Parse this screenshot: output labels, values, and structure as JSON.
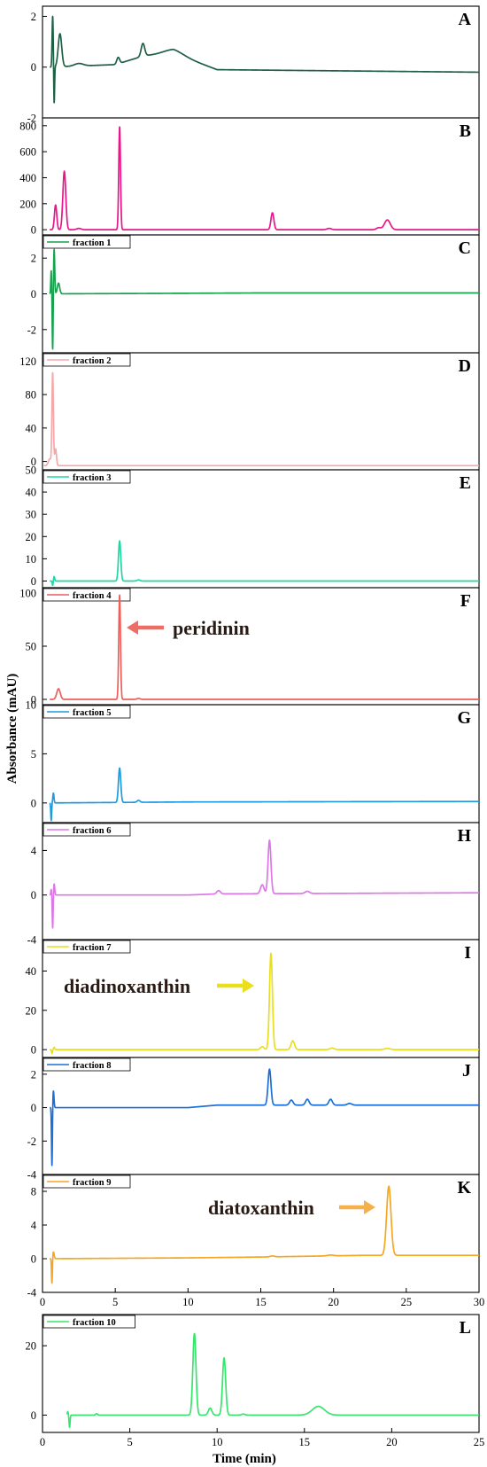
{
  "figure": {
    "ylabel": "Absorbance (mAU)",
    "xlabel": "Time (min)"
  },
  "chart_data": [
    {
      "type": "line",
      "panel": "A",
      "color": "#1f5f45",
      "legend": "",
      "xlim": [
        0,
        30
      ],
      "ylim": [
        -2,
        2.4
      ],
      "yticks": [
        -2,
        0,
        2
      ],
      "baseline": [
        [
          0.5,
          0
        ],
        [
          5,
          0.1
        ],
        [
          7,
          0.45
        ],
        [
          9,
          0.55
        ],
        [
          12,
          -0.1
        ],
        [
          30,
          -0.2
        ]
      ],
      "peaks": [
        {
          "t": 0.7,
          "h": 2.0,
          "w": 0.04
        },
        {
          "t": 0.8,
          "h": -1.5,
          "w": 0.03
        },
        {
          "t": 1.2,
          "h": 1.3,
          "w": 0.12
        },
        {
          "t": 2.5,
          "h": 0.1,
          "w": 0.3
        },
        {
          "t": 5.2,
          "h": 0.25,
          "w": 0.1
        },
        {
          "t": 6.9,
          "h": 0.5,
          "w": 0.12
        },
        {
          "t": 9.0,
          "h": 0.15,
          "w": 0.7
        }
      ]
    },
    {
      "type": "line",
      "panel": "B",
      "color": "#e8168a",
      "legend": "",
      "xlim": [
        0,
        30
      ],
      "ylim": [
        -40,
        860
      ],
      "yticks": [
        0,
        200,
        400,
        600,
        800
      ],
      "baseline": [
        [
          0.5,
          0
        ],
        [
          30,
          0
        ]
      ],
      "peaks": [
        {
          "t": 0.9,
          "h": 190,
          "w": 0.08
        },
        {
          "t": 1.5,
          "h": 450,
          "w": 0.1
        },
        {
          "t": 2.5,
          "h": 10,
          "w": 0.15
        },
        {
          "t": 5.3,
          "h": 790,
          "w": 0.06
        },
        {
          "t": 15.8,
          "h": 130,
          "w": 0.1
        },
        {
          "t": 19.7,
          "h": 10,
          "w": 0.15
        },
        {
          "t": 23.7,
          "h": 75,
          "w": 0.2
        },
        {
          "t": 23.1,
          "h": 15,
          "w": 0.15
        }
      ]
    },
    {
      "type": "line",
      "panel": "C",
      "color": "#17a24e",
      "legend": "fraction 1",
      "xlim": [
        0,
        30
      ],
      "ylim": [
        -3.3,
        3.3
      ],
      "yticks": [
        -2,
        0,
        2
      ],
      "baseline": [
        [
          0.5,
          0
        ],
        [
          15,
          0.05
        ],
        [
          30,
          0.05
        ]
      ],
      "peaks": [
        {
          "t": 0.6,
          "h": 1.3,
          "w": 0.03
        },
        {
          "t": 0.7,
          "h": -3.2,
          "w": 0.03
        },
        {
          "t": 0.8,
          "h": 2.5,
          "w": 0.04
        },
        {
          "t": 1.1,
          "h": 0.6,
          "w": 0.08
        }
      ]
    },
    {
      "type": "line",
      "panel": "D",
      "color": "#f4a9a8",
      "legend": "fraction 2",
      "xlim": [
        0,
        30
      ],
      "ylim": [
        -10,
        130
      ],
      "yticks": [
        0,
        40,
        80,
        120
      ],
      "baseline": [
        [
          0.1,
          -5
        ],
        [
          30,
          -5
        ]
      ],
      "peaks": [
        {
          "t": 0.5,
          "h": 8,
          "w": 0.1
        },
        {
          "t": 0.7,
          "h": 110,
          "w": 0.05
        },
        {
          "t": 0.9,
          "h": 20,
          "w": 0.06
        }
      ]
    },
    {
      "type": "line",
      "panel": "E",
      "color": "#1ed7a4",
      "legend": "fraction 3",
      "xlim": [
        0,
        30
      ],
      "ylim": [
        -3,
        50
      ],
      "yticks": [
        0,
        10,
        20,
        30,
        40,
        50
      ],
      "baseline": [
        [
          0.5,
          0
        ],
        [
          30,
          0
        ]
      ],
      "peaks": [
        {
          "t": 0.7,
          "h": -2,
          "w": 0.03
        },
        {
          "t": 0.8,
          "h": 2,
          "w": 0.04
        },
        {
          "t": 5.3,
          "h": 18,
          "w": 0.08
        },
        {
          "t": 6.6,
          "h": 0.5,
          "w": 0.1
        }
      ]
    },
    {
      "type": "line",
      "panel": "F",
      "color": "#ee5f5b",
      "legend": "fraction 4",
      "xlim": [
        0,
        30
      ],
      "ylim": [
        -5,
        105
      ],
      "yticks": [
        0,
        50,
        100
      ],
      "annotation": "peridinin",
      "baseline": [
        [
          0.5,
          0
        ],
        [
          30,
          0
        ]
      ],
      "peaks": [
        {
          "t": 1.1,
          "h": 10,
          "w": 0.12
        },
        {
          "t": 5.3,
          "h": 98,
          "w": 0.06
        },
        {
          "t": 6.6,
          "h": 1,
          "w": 0.1
        }
      ]
    },
    {
      "type": "line",
      "panel": "G",
      "color": "#1e9adf",
      "legend": "fraction 5",
      "xlim": [
        0,
        30
      ],
      "ylim": [
        -2,
        10
      ],
      "yticks": [
        0,
        5,
        10
      ],
      "baseline": [
        [
          0.5,
          0
        ],
        [
          10,
          0.1
        ],
        [
          30,
          0.15
        ]
      ],
      "peaks": [
        {
          "t": 0.6,
          "h": -1.8,
          "w": 0.03
        },
        {
          "t": 0.75,
          "h": 1,
          "w": 0.04
        },
        {
          "t": 5.3,
          "h": 3.5,
          "w": 0.08
        },
        {
          "t": 6.6,
          "h": 0.2,
          "w": 0.1
        }
      ]
    },
    {
      "type": "line",
      "panel": "H",
      "color": "#dd77e8",
      "legend": "fraction 6",
      "xlim": [
        0,
        30
      ],
      "ylim": [
        -4,
        6.5
      ],
      "yticks": [
        -4,
        0,
        4
      ],
      "baseline": [
        [
          0.5,
          0
        ],
        [
          10,
          0
        ],
        [
          12,
          0.1
        ],
        [
          30,
          0.2
        ]
      ],
      "peaks": [
        {
          "t": 0.6,
          "h": 0.5,
          "w": 0.03
        },
        {
          "t": 0.7,
          "h": -3.0,
          "w": 0.03
        },
        {
          "t": 0.8,
          "h": 1.0,
          "w": 0.04
        },
        {
          "t": 12.1,
          "h": 0.3,
          "w": 0.12
        },
        {
          "t": 15.1,
          "h": 0.8,
          "w": 0.12
        },
        {
          "t": 15.6,
          "h": 4.8,
          "w": 0.1
        },
        {
          "t": 18.2,
          "h": 0.2,
          "w": 0.15
        }
      ]
    },
    {
      "type": "line",
      "panel": "I",
      "color": "#e9df1a",
      "legend": "fraction 7",
      "xlim": [
        0,
        30
      ],
      "ylim": [
        -4,
        56
      ],
      "yticks": [
        0,
        20,
        40
      ],
      "annotation": "diadinoxanthin",
      "baseline": [
        [
          0.5,
          0
        ],
        [
          30,
          0
        ]
      ],
      "peaks": [
        {
          "t": 0.65,
          "h": -2,
          "w": 0.03
        },
        {
          "t": 0.8,
          "h": 1.2,
          "w": 0.04
        },
        {
          "t": 15.1,
          "h": 1.5,
          "w": 0.12
        },
        {
          "t": 15.7,
          "h": 49,
          "w": 0.1
        },
        {
          "t": 17.2,
          "h": 4.5,
          "w": 0.12
        },
        {
          "t": 19.9,
          "h": 0.8,
          "w": 0.15
        },
        {
          "t": 23.7,
          "h": 0.6,
          "w": 0.2
        }
      ]
    },
    {
      "type": "line",
      "panel": "J",
      "color": "#1b6fd8",
      "legend": "fraction 8",
      "xlim": [
        0,
        30
      ],
      "ylim": [
        -4,
        3
      ],
      "yticks": [
        -4,
        -2,
        0,
        2
      ],
      "baseline": [
        [
          0.5,
          0
        ],
        [
          10,
          0
        ],
        [
          12,
          0.15
        ],
        [
          30,
          0.15
        ]
      ],
      "peaks": [
        {
          "t": 0.65,
          "h": -3.5,
          "w": 0.03
        },
        {
          "t": 0.75,
          "h": 1.0,
          "w": 0.04
        },
        {
          "t": 15.6,
          "h": 2.15,
          "w": 0.1
        },
        {
          "t": 17.1,
          "h": 0.3,
          "w": 0.12
        },
        {
          "t": 18.2,
          "h": 0.35,
          "w": 0.12
        },
        {
          "t": 19.8,
          "h": 0.35,
          "w": 0.12
        },
        {
          "t": 21.1,
          "h": 0.1,
          "w": 0.15
        }
      ]
    },
    {
      "type": "line",
      "panel": "K",
      "color": "#f5a623",
      "legend": "fraction 9",
      "xlim": [
        0,
        30
      ],
      "ylim": [
        -4,
        10
      ],
      "yticks": [
        -4,
        0,
        4,
        8
      ],
      "xticks": [
        0,
        5,
        10,
        15,
        20,
        25,
        30
      ],
      "annotation": "diatoxanthin",
      "baseline": [
        [
          0.5,
          0
        ],
        [
          10,
          0.1
        ],
        [
          15,
          0.2
        ],
        [
          22,
          0.4
        ],
        [
          30,
          0.4
        ]
      ],
      "peaks": [
        {
          "t": 0.65,
          "h": -3.0,
          "w": 0.03
        },
        {
          "t": 0.75,
          "h": 0.8,
          "w": 0.05
        },
        {
          "t": 15.8,
          "h": 0.1,
          "w": 0.15
        },
        {
          "t": 19.8,
          "h": 0.1,
          "w": 0.2
        },
        {
          "t": 23.8,
          "h": 8.2,
          "w": 0.15
        }
      ]
    },
    {
      "type": "line",
      "panel": "L",
      "color": "#36e66c",
      "legend": "fraction 10",
      "xlim": [
        0,
        25
      ],
      "ylim": [
        -5,
        29
      ],
      "yticks": [
        0,
        20
      ],
      "xticks": [
        0,
        5,
        10,
        15,
        20,
        25
      ],
      "baseline": [
        [
          1.4,
          0
        ],
        [
          25,
          0
        ]
      ],
      "peaks": [
        {
          "t": 1.45,
          "h": 1,
          "w": 0.03
        },
        {
          "t": 1.55,
          "h": -3.5,
          "w": 0.03
        },
        {
          "t": 3.1,
          "h": 0.4,
          "w": 0.05
        },
        {
          "t": 8.7,
          "h": 23.5,
          "w": 0.09
        },
        {
          "t": 9.6,
          "h": 2,
          "w": 0.1
        },
        {
          "t": 10.4,
          "h": 16.5,
          "w": 0.09
        },
        {
          "t": 11.5,
          "h": 0.3,
          "w": 0.1
        },
        {
          "t": 15.8,
          "h": 2.5,
          "w": 0.35
        }
      ]
    }
  ]
}
